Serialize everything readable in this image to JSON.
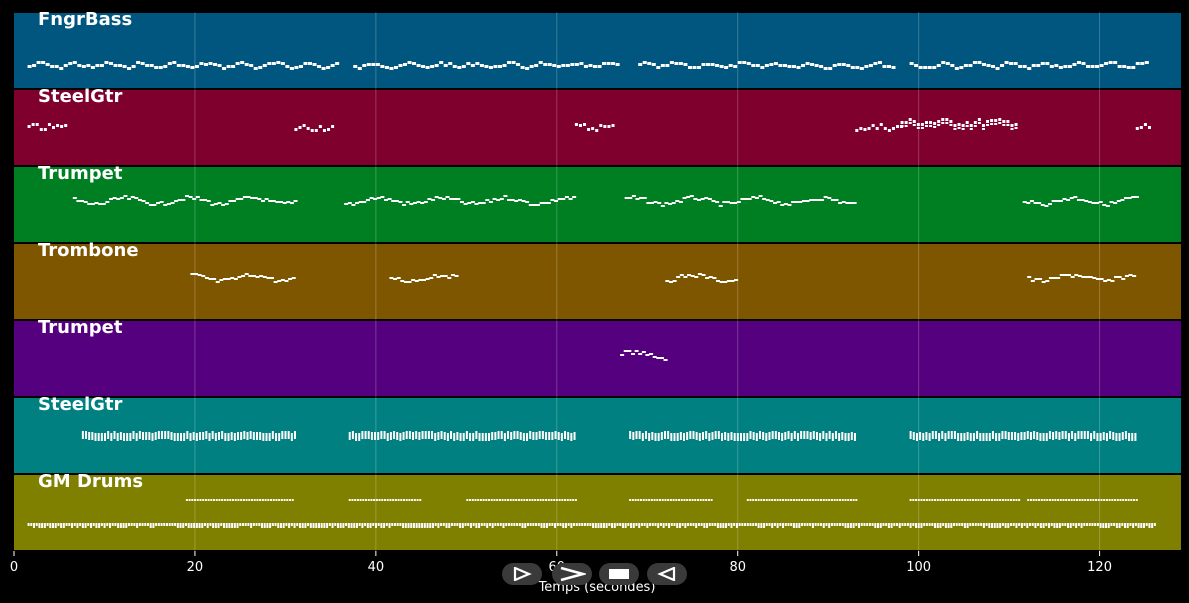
{
  "chart_data": {
    "type": "piano-roll",
    "xlabel": "Temps (secondes)",
    "xlim": [
      0,
      129
    ],
    "xticks": [
      0,
      20,
      40,
      60,
      80,
      100,
      120
    ],
    "grid": true,
    "tracks": [
      {
        "name": "FngrBass",
        "color": "#00567f",
        "notes": [
          [
            1.5,
            125.5
          ]
        ],
        "gaps": [
          [
            36,
            37
          ],
          [
            67,
            68.5
          ],
          [
            97.5,
            98.5
          ]
        ],
        "style": "bass"
      },
      {
        "name": "SteelGtr",
        "color": "#7f002c",
        "notes": [
          [
            1.5,
            6
          ],
          [
            31,
            35.5
          ],
          [
            62,
            66.5
          ],
          [
            93,
            98
          ],
          [
            98,
            111
          ],
          [
            124,
            125.5
          ]
        ],
        "style": "steel"
      },
      {
        "name": "Trumpet",
        "color": "#007f22",
        "notes": [
          [
            6.5,
            31
          ],
          [
            36.5,
            62
          ],
          [
            67.5,
            93
          ],
          [
            111.5,
            124
          ]
        ],
        "style": "melody"
      },
      {
        "name": "Trombone",
        "color": "#7f5600",
        "notes": [
          [
            19.5,
            31
          ],
          [
            41.5,
            49
          ],
          [
            72,
            80
          ],
          [
            112,
            124
          ]
        ],
        "style": "melody"
      },
      {
        "name": "Trumpet",
        "color": "#55007f",
        "notes": [
          [
            67,
            72
          ]
        ],
        "style": "melody"
      },
      {
        "name": "SteelGtr",
        "color": "#008080",
        "notes": [
          [
            7.5,
            31
          ],
          [
            37,
            62
          ],
          [
            68,
            93
          ],
          [
            99,
            124
          ]
        ],
        "style": "chords"
      },
      {
        "name": "GM Drums",
        "color": "#7f7f00",
        "notes": [
          [
            1.5,
            126
          ]
        ],
        "style": "drums"
      }
    ]
  },
  "transport": {
    "buttons": [
      {
        "name": "play-button",
        "icon": "play-icon"
      },
      {
        "name": "fast-forward-button",
        "icon": "fast-forward-icon"
      },
      {
        "name": "stop-button",
        "icon": "stop-icon"
      },
      {
        "name": "rewind-button",
        "icon": "rewind-icon"
      }
    ]
  }
}
